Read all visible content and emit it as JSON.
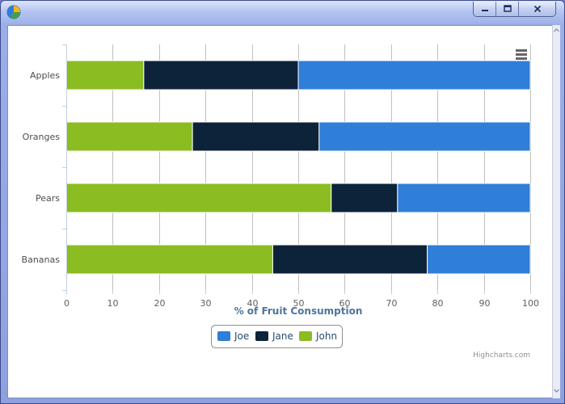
{
  "window": {
    "controls": [
      "minimize",
      "maximize",
      "close"
    ]
  },
  "chart_data": {
    "type": "bar",
    "stacking": "percent",
    "orientation": "horizontal",
    "title": "",
    "categories": [
      "Apples",
      "Oranges",
      "Pears",
      "Bananas"
    ],
    "xlabel": "% of Fruit Consumption",
    "ylabel": "",
    "xlim": [
      0,
      100
    ],
    "ticks": [
      "0",
      "10",
      "20",
      "30",
      "40",
      "50",
      "60",
      "70",
      "80",
      "90",
      "100"
    ],
    "grid": true,
    "series": [
      {
        "name": "Joe",
        "color": "#2f7ed8",
        "values": [
          50.0,
          45.5,
          28.6,
          22.2
        ]
      },
      {
        "name": "Jane",
        "color": "#0d233a",
        "values": [
          33.3,
          27.3,
          14.3,
          33.3
        ]
      },
      {
        "name": "John",
        "color": "#8bbc21",
        "values": [
          16.7,
          27.2,
          57.1,
          44.5
        ]
      }
    ],
    "legend_position": "bottom-center",
    "credits": "Highcharts.com",
    "menu_icon": "menu-icon"
  }
}
